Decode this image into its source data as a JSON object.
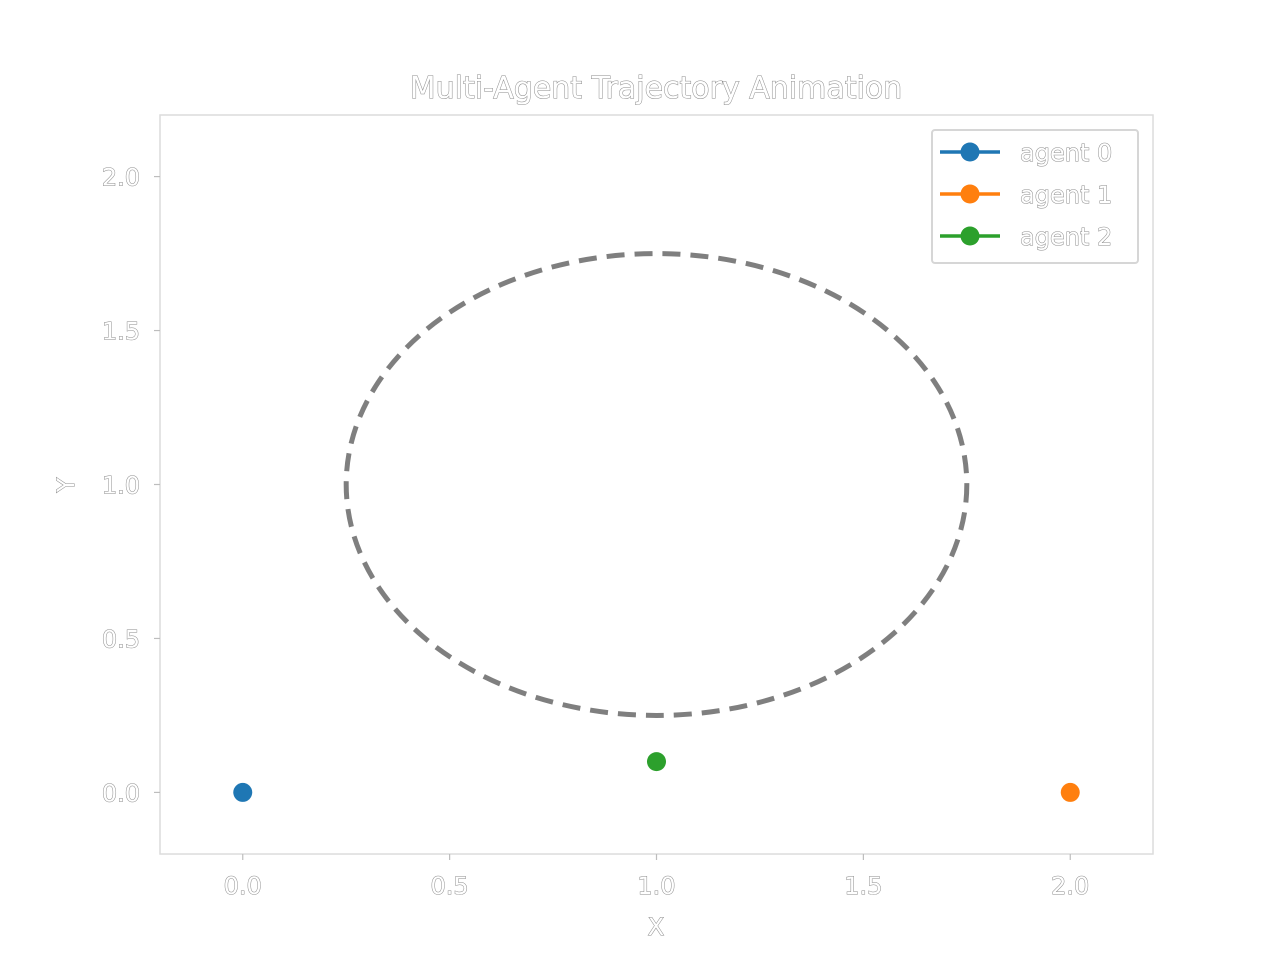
{
  "chart_data": {
    "type": "scatter",
    "title": "Multi-Agent Trajectory Animation",
    "xlabel": "X",
    "ylabel": "Y",
    "xlim": [
      -0.2,
      2.2
    ],
    "ylim": [
      -0.2,
      2.2
    ],
    "x_ticks": [
      0.0,
      0.5,
      1.0,
      1.5,
      2.0
    ],
    "y_ticks": [
      0.0,
      0.5,
      1.0,
      1.5,
      2.0
    ],
    "x_tick_labels": [
      "0.0",
      "0.5",
      "1.0",
      "1.5",
      "2.0"
    ],
    "y_tick_labels": [
      "0.0",
      "0.5",
      "1.0",
      "1.5",
      "2.0"
    ],
    "grid": false,
    "legend_position": "top-right",
    "series": [
      {
        "name": "agent 0",
        "color": "#1f77b4",
        "points": [
          {
            "x": 0.0,
            "y": 0.0
          }
        ]
      },
      {
        "name": "agent 1",
        "color": "#ff7f0e",
        "points": [
          {
            "x": 2.0,
            "y": 0.0
          }
        ]
      },
      {
        "name": "agent 2",
        "color": "#2ca02c",
        "points": [
          {
            "x": 1.0,
            "y": 0.1
          }
        ]
      }
    ],
    "reference_path": {
      "shape": "ellipse",
      "center": [
        1.0,
        1.0
      ],
      "rx": 0.75,
      "ry": 0.75,
      "style": "dashed",
      "color": "#7f7f7f"
    }
  }
}
